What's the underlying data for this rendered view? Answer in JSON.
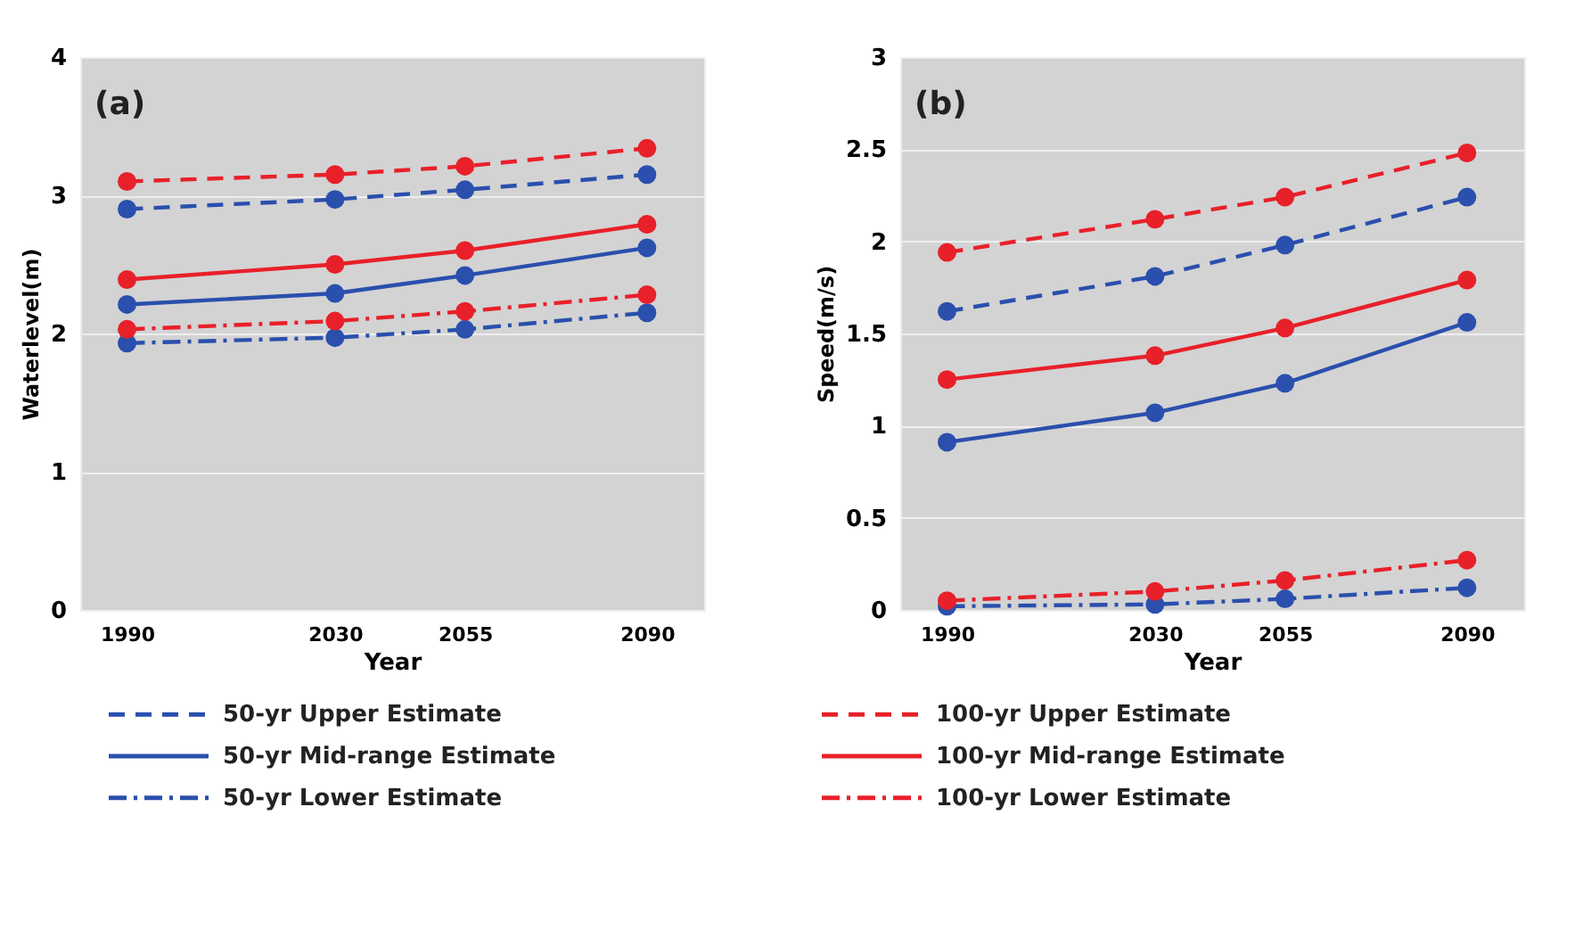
{
  "chart_data": [
    {
      "type": "line",
      "ylabel": "Waterlevel(m)",
      "xlabel": "Year",
      "annotations": [
        "(a)"
      ],
      "x": [
        1990,
        2030,
        2055,
        2090
      ],
      "xlim": [
        1981,
        2101
      ],
      "xticks": [
        1990,
        2030,
        2055,
        2090
      ],
      "ylim": [
        0,
        4
      ],
      "yticks": [
        0,
        1,
        2,
        3,
        4
      ],
      "grid": "y",
      "marker": "circle",
      "legend": "bottom",
      "series": [
        {
          "name": "50-yr Upper Estimate",
          "color": "#2a4fad",
          "line_style": "dashed",
          "values": [
            2.9,
            2.97,
            3.04,
            3.15
          ]
        },
        {
          "name": "50-yr Mid-range Estimate",
          "color": "#2a4fad",
          "line_style": "solid",
          "values": [
            2.21,
            2.29,
            2.42,
            2.62
          ]
        },
        {
          "name": "50-yr Lower Estimate",
          "color": "#2a4fad",
          "line_style": "dashdot",
          "values": [
            1.93,
            1.97,
            2.03,
            2.15
          ]
        },
        {
          "name": "100-yr Upper Estimate",
          "color": "#e8202a",
          "line_style": "dashed",
          "values": [
            3.1,
            3.15,
            3.21,
            3.34
          ]
        },
        {
          "name": "100-yr Mid-range Estimate",
          "color": "#e8202a",
          "line_style": "solid",
          "values": [
            2.39,
            2.5,
            2.6,
            2.79
          ]
        },
        {
          "name": "100-yr Lower Estimate",
          "color": "#e8202a",
          "line_style": "dashdot",
          "values": [
            2.03,
            2.09,
            2.16,
            2.28
          ]
        }
      ]
    },
    {
      "type": "line",
      "ylabel": "Speed(m/s)",
      "xlabel": "Year",
      "annotations": [
        "(b)"
      ],
      "x": [
        1990,
        2030,
        2055,
        2090
      ],
      "xlim": [
        1981,
        2101
      ],
      "xticks": [
        1990,
        2030,
        2055,
        2090
      ],
      "ylim": [
        0,
        3
      ],
      "yticks": [
        0,
        0.5,
        1,
        1.5,
        2,
        2.5,
        3
      ],
      "grid": "y",
      "marker": "circle",
      "series": [
        {
          "color": "#2a4fad",
          "line_style": "dashed",
          "values": [
            1.62,
            1.81,
            1.98,
            2.24
          ]
        },
        {
          "color": "#2a4fad",
          "line_style": "solid",
          "values": [
            0.91,
            1.07,
            1.23,
            1.56
          ]
        },
        {
          "color": "#2a4fad",
          "line_style": "dashdot",
          "values": [
            0.02,
            0.03,
            0.06,
            0.12
          ]
        },
        {
          "color": "#e8202a",
          "line_style": "dashed",
          "values": [
            1.94,
            2.12,
            2.24,
            2.48
          ]
        },
        {
          "color": "#e8202a",
          "line_style": "solid",
          "values": [
            1.25,
            1.38,
            1.53,
            1.79
          ]
        },
        {
          "color": "#e8202a",
          "line_style": "dashdot",
          "values": [
            0.05,
            0.1,
            0.16,
            0.27
          ]
        }
      ]
    }
  ]
}
